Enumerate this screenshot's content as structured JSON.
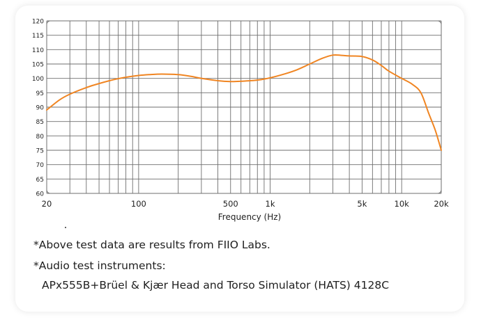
{
  "chart_data": {
    "type": "line",
    "title": "",
    "xlabel": "Frequency (Hz)",
    "ylabel": "",
    "xscale": "log",
    "xlim": [
      20,
      20000
    ],
    "ylim": [
      60,
      120
    ],
    "grid": true,
    "legend": "none",
    "y_ticks": [
      60,
      65,
      70,
      75,
      80,
      85,
      90,
      95,
      100,
      105,
      110,
      115,
      120
    ],
    "x_tick_labels": [
      {
        "value": 20,
        "label": "20"
      },
      {
        "value": 100,
        "label": "100"
      },
      {
        "value": 500,
        "label": "500"
      },
      {
        "value": 1000,
        "label": "1k"
      },
      {
        "value": 5000,
        "label": "5k"
      },
      {
        "value": 10000,
        "label": "10k"
      },
      {
        "value": 20000,
        "label": "20k"
      }
    ],
    "x_minor_gridlines": [
      30,
      40,
      50,
      60,
      70,
      80,
      90,
      200,
      300,
      400,
      600,
      700,
      800,
      900,
      2000,
      3000,
      4000,
      6000,
      7000,
      8000,
      9000
    ],
    "series": [
      {
        "color": "#f08522",
        "x": [
          20,
          25,
          30,
          40,
          50,
          60,
          70,
          80,
          100,
          120,
          150,
          200,
          250,
          300,
          400,
          500,
          600,
          800,
          1000,
          1300,
          1600,
          2000,
          2500,
          3000,
          3500,
          4000,
          5000,
          6000,
          7000,
          8000,
          10000,
          12000,
          14000,
          16000,
          18000,
          20000
        ],
        "y": [
          89,
          92.5,
          94.5,
          96.8,
          98.2,
          99.2,
          99.9,
          100.4,
          101.0,
          101.3,
          101.5,
          101.3,
          100.7,
          100.0,
          99.2,
          98.9,
          99.0,
          99.4,
          100.2,
          101.6,
          103.0,
          105.0,
          107.0,
          108.1,
          108.0,
          107.8,
          107.6,
          106.4,
          104.5,
          102.5,
          100.0,
          98.0,
          95.0,
          88.0,
          82.0,
          75.0
        ]
      }
    ]
  },
  "notes": {
    "line1": "*Above test data are results from FIIO Labs.",
    "line2": "*Audio test instruments:",
    "line3": "APx555B+Brüel & Kjær Head and Torso Simulator (HATS) 4128C"
  }
}
